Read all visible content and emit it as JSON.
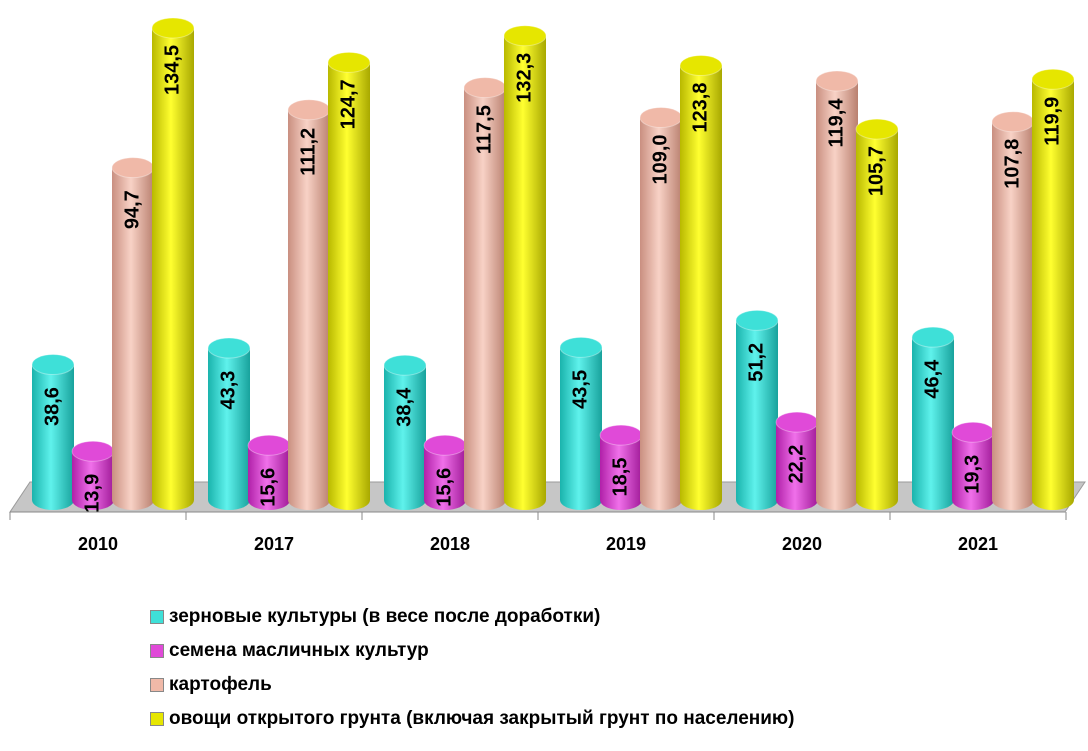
{
  "chart_data": {
    "type": "bar",
    "categories": [
      "2010",
      "2017",
      "2018",
      "2019",
      "2020",
      "2021"
    ],
    "series": [
      {
        "name": "зерновые  культуры (в весе после доработки)",
        "color": "#3ee0d8",
        "values": [
          38.6,
          43.3,
          38.4,
          43.5,
          51.2,
          46.4
        ],
        "labels": [
          "38,6",
          "43,3",
          "38,4",
          "43,5",
          "51,2",
          "46,4"
        ]
      },
      {
        "name": "семена масличных культур",
        "color": "#e04ad8",
        "values": [
          13.9,
          15.6,
          15.6,
          18.5,
          22.2,
          19.3
        ],
        "labels": [
          "13,9",
          "15,6",
          "15,6",
          "18,5",
          "22,2",
          "19,3"
        ]
      },
      {
        "name": "картофель",
        "color": "#f0b9a8",
        "values": [
          94.7,
          111.2,
          117.5,
          109.0,
          119.4,
          107.8
        ],
        "labels": [
          "94,7",
          "111,2",
          "117,5",
          "109,0",
          "119,4",
          "107,8"
        ]
      },
      {
        "name": "овощи открытого грунта (включая закрытый грунт по населению)",
        "color": "#e6e600",
        "values": [
          134.5,
          124.7,
          132.3,
          123.8,
          105.7,
          119.9
        ],
        "labels": [
          "134,5",
          "124,7",
          "132,3",
          "123,8",
          "105,7",
          "119,9"
        ]
      }
    ],
    "ylim": [
      0,
      134.5
    ],
    "grid": false,
    "legend_position": "bottom"
  }
}
